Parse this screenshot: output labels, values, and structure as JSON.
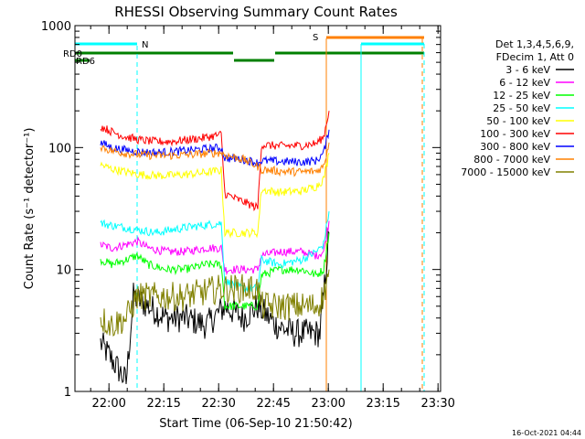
{
  "chart_data": {
    "type": "line",
    "title": "RHESSI Observing Summary Count Rates",
    "xlabel": "Start Time (06-Sep-10 21:50:42)",
    "ylabel": "Count Rate (s⁻¹ detector⁻¹)",
    "footer": "16-Oct-2021 04:44",
    "yscale": "log",
    "ylim": [
      1,
      1000
    ],
    "xlim_minutes": [
      0,
      100
    ],
    "x_ticks": [
      {
        "m": 9.3,
        "label": "22:00"
      },
      {
        "m": 24.3,
        "label": "22:15"
      },
      {
        "m": 39.3,
        "label": "22:30"
      },
      {
        "m": 54.3,
        "label": "22:45"
      },
      {
        "m": 69.3,
        "label": "23:00"
      },
      {
        "m": 84.3,
        "label": "23:15"
      },
      {
        "m": 99.3,
        "label": "23:30"
      }
    ],
    "y_ticks": [
      {
        "v": 1,
        "label": "1"
      },
      {
        "v": 10,
        "label": "10"
      },
      {
        "v": 100,
        "label": "100"
      },
      {
        "v": 1000,
        "label": "1000"
      }
    ],
    "legend_header": [
      "Det 1,3,4,5,6,9,",
      "FDecim 1, Att 0"
    ],
    "series": [
      {
        "name": "3 - 6 keV",
        "color": "#000000",
        "points": [
          [
            7,
            2.5
          ],
          [
            12,
            1.5
          ],
          [
            14,
            1.2
          ],
          [
            16,
            6
          ],
          [
            20,
            5
          ],
          [
            25,
            4
          ],
          [
            30,
            4
          ],
          [
            36,
            3.5
          ],
          [
            41,
            5
          ],
          [
            46,
            4
          ],
          [
            50,
            5
          ],
          [
            55,
            3.5
          ],
          [
            60,
            3
          ],
          [
            65,
            3
          ],
          [
            67,
            3
          ],
          [
            68,
            6
          ],
          [
            69.5,
            20
          ]
        ]
      },
      {
        "name": "6 - 12 keV",
        "color": "#ff00ff",
        "points": [
          [
            7,
            16
          ],
          [
            10,
            15
          ],
          [
            14,
            16
          ],
          [
            17,
            17
          ],
          [
            20,
            15
          ],
          [
            25,
            14
          ],
          [
            30,
            14
          ],
          [
            36,
            15
          ],
          [
            40,
            15
          ],
          [
            41,
            10
          ],
          [
            46,
            10
          ],
          [
            50,
            10
          ],
          [
            51,
            13
          ],
          [
            56,
            14
          ],
          [
            62,
            14
          ],
          [
            66,
            13
          ],
          [
            68,
            14
          ],
          [
            69.5,
            25
          ]
        ]
      },
      {
        "name": "12 - 25 keV",
        "color": "#00ff00",
        "points": [
          [
            7,
            12
          ],
          [
            10,
            11
          ],
          [
            14,
            12
          ],
          [
            17,
            13
          ],
          [
            20,
            11
          ],
          [
            25,
            10
          ],
          [
            30,
            10
          ],
          [
            36,
            11
          ],
          [
            40,
            11
          ],
          [
            41,
            5
          ],
          [
            46,
            5
          ],
          [
            50,
            5
          ],
          [
            51,
            9
          ],
          [
            56,
            10
          ],
          [
            62,
            10
          ],
          [
            66,
            9
          ],
          [
            68,
            10
          ],
          [
            69.5,
            20
          ]
        ]
      },
      {
        "name": "25 - 50 keV",
        "color": "#00ffff",
        "points": [
          [
            7,
            24
          ],
          [
            10,
            23
          ],
          [
            14,
            22
          ],
          [
            18,
            21
          ],
          [
            22,
            20
          ],
          [
            26,
            21
          ],
          [
            30,
            22
          ],
          [
            35,
            23
          ],
          [
            40,
            24
          ],
          [
            41,
            8
          ],
          [
            46,
            7
          ],
          [
            50,
            7
          ],
          [
            51,
            12
          ],
          [
            56,
            11
          ],
          [
            62,
            12
          ],
          [
            66,
            14
          ],
          [
            68,
            16
          ],
          [
            69.5,
            30
          ]
        ]
      },
      {
        "name": "50 - 100 keV",
        "color": "#ffff00",
        "points": [
          [
            7,
            72
          ],
          [
            10,
            67
          ],
          [
            14,
            63
          ],
          [
            18,
            60
          ],
          [
            22,
            59
          ],
          [
            26,
            59
          ],
          [
            30,
            60
          ],
          [
            35,
            62
          ],
          [
            40,
            65
          ],
          [
            41,
            20
          ],
          [
            46,
            20
          ],
          [
            50,
            20
          ],
          [
            51,
            45
          ],
          [
            56,
            43
          ],
          [
            62,
            44
          ],
          [
            66,
            48
          ],
          [
            68,
            55
          ],
          [
            69.5,
            90
          ]
        ]
      },
      {
        "name": "100 - 300 keV",
        "color": "#ff0000",
        "points": [
          [
            7,
            150
          ],
          [
            10,
            135
          ],
          [
            14,
            122
          ],
          [
            18,
            115
          ],
          [
            22,
            112
          ],
          [
            26,
            112
          ],
          [
            30,
            115
          ],
          [
            35,
            120
          ],
          [
            40,
            128
          ],
          [
            41,
            42
          ],
          [
            44,
            38
          ],
          [
            47,
            35
          ],
          [
            50,
            32
          ],
          [
            51,
            105
          ],
          [
            56,
            103
          ],
          [
            62,
            104
          ],
          [
            66,
            108
          ],
          [
            68,
            122
          ],
          [
            69.5,
            200
          ]
        ]
      },
      {
        "name": "300 - 800 keV",
        "color": "#0000ff",
        "points": [
          [
            7,
            110
          ],
          [
            10,
            100
          ],
          [
            14,
            95
          ],
          [
            18,
            92
          ],
          [
            22,
            91
          ],
          [
            26,
            92
          ],
          [
            30,
            94
          ],
          [
            35,
            97
          ],
          [
            40,
            100
          ],
          [
            41,
            82
          ],
          [
            46,
            80
          ],
          [
            50,
            75
          ],
          [
            51,
            78
          ],
          [
            56,
            77
          ],
          [
            62,
            76
          ],
          [
            66,
            78
          ],
          [
            68,
            90
          ],
          [
            69.5,
            140
          ]
        ]
      },
      {
        "name": "800 - 7000 keV",
        "color": "#ff8000",
        "points": [
          [
            7,
            102
          ],
          [
            10,
            94
          ],
          [
            14,
            90
          ],
          [
            18,
            87
          ],
          [
            22,
            86
          ],
          [
            26,
            86
          ],
          [
            30,
            87
          ],
          [
            35,
            89
          ],
          [
            40,
            91
          ],
          [
            41,
            87
          ],
          [
            46,
            80
          ],
          [
            50,
            70
          ],
          [
            51,
            66
          ],
          [
            56,
            64
          ],
          [
            62,
            63
          ],
          [
            66,
            64
          ],
          [
            68,
            70
          ],
          [
            69.5,
            110
          ]
        ]
      },
      {
        "name": "7000 - 15000 keV",
        "color": "#808000",
        "points": [
          [
            7,
            4
          ],
          [
            10,
            3.5
          ],
          [
            14,
            4
          ],
          [
            17,
            6
          ],
          [
            21,
            6
          ],
          [
            25,
            6
          ],
          [
            30,
            6
          ],
          [
            35,
            6.5
          ],
          [
            40,
            7
          ],
          [
            41,
            7
          ],
          [
            46,
            7
          ],
          [
            50,
            7
          ],
          [
            51,
            5
          ],
          [
            56,
            5
          ],
          [
            62,
            5
          ],
          [
            66,
            5
          ],
          [
            68,
            6
          ],
          [
            69.5,
            10
          ]
        ]
      }
    ],
    "annotations": [
      {
        "id": "rd0",
        "text": "RD0",
        "color": "#008000"
      },
      {
        "id": "rd6",
        "text": "RD6",
        "color": "#008000"
      },
      {
        "id": "n",
        "text": "N",
        "color": "#00ffff"
      },
      {
        "id": "s",
        "text": "S",
        "color": "#ff8000"
      }
    ]
  }
}
